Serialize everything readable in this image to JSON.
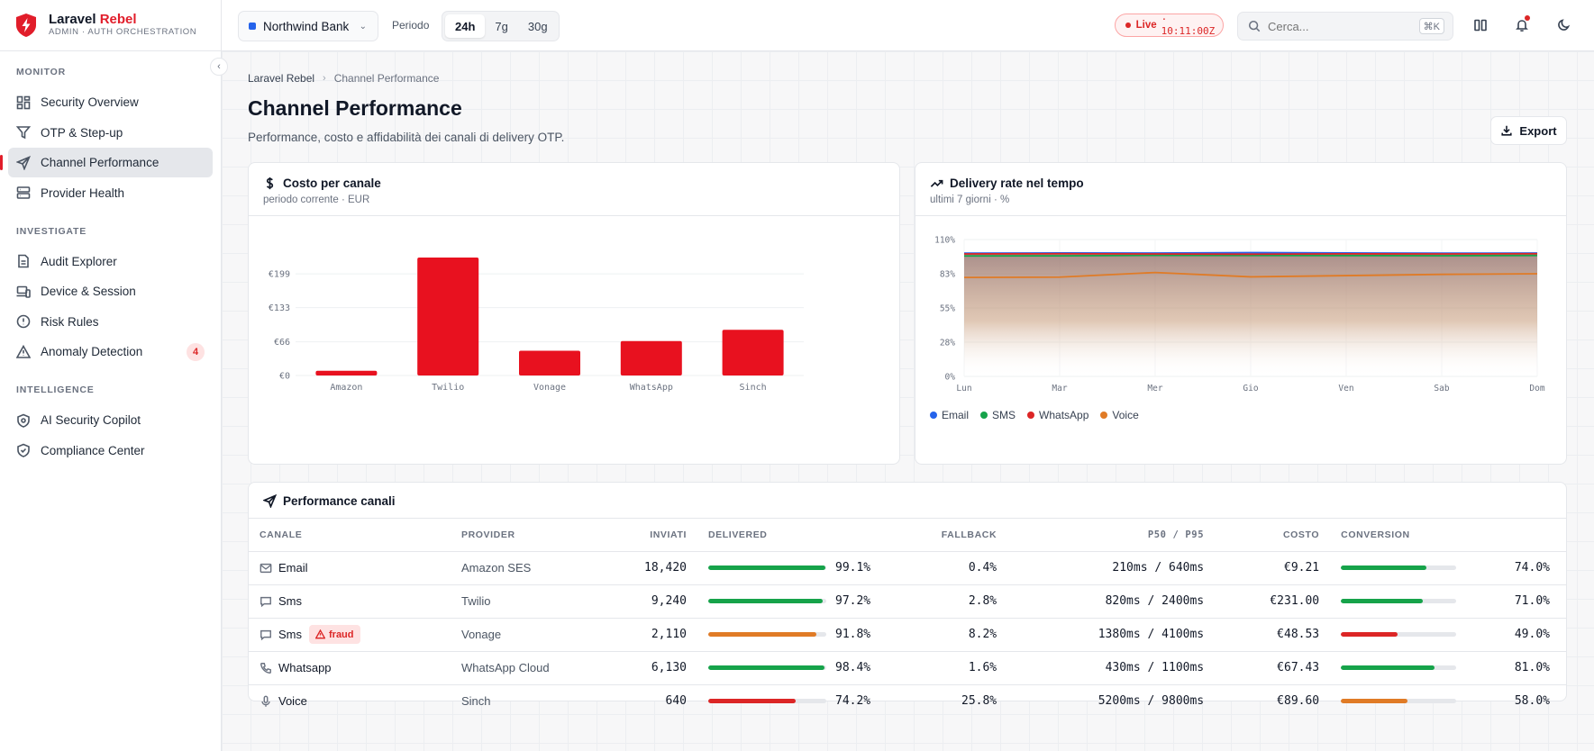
{
  "brand": {
    "name_main": "Laravel ",
    "name_accent": "Rebel",
    "subtitle": "ADMIN · AUTH ORCHESTRATION"
  },
  "sidebar": {
    "sections": [
      {
        "heading": "MONITOR",
        "items": [
          {
            "label": "Security Overview",
            "icon": "grid-icon"
          },
          {
            "label": "OTP & Step-up",
            "icon": "funnel-icon"
          },
          {
            "label": "Channel Performance",
            "icon": "send-icon",
            "active": true
          },
          {
            "label": "Provider Health",
            "icon": "server-icon"
          }
        ]
      },
      {
        "heading": "INVESTIGATE",
        "items": [
          {
            "label": "Audit Explorer",
            "icon": "file-icon"
          },
          {
            "label": "Device & Session",
            "icon": "devices-icon"
          },
          {
            "label": "Risk Rules",
            "icon": "alert-circle-icon"
          },
          {
            "label": "Anomaly Detection",
            "icon": "warning-icon",
            "badge": "4"
          }
        ]
      },
      {
        "heading": "INTELLIGENCE",
        "items": [
          {
            "label": "AI Security Copilot",
            "icon": "ai-shield-icon"
          },
          {
            "label": "Compliance Center",
            "icon": "shield-check-icon"
          }
        ]
      }
    ]
  },
  "topbar": {
    "tenant": "Northwind Bank",
    "period_label": "Periodo",
    "periods": [
      "24h",
      "7g",
      "30g"
    ],
    "active_period": "24h",
    "live_label": "Live",
    "live_time": "· 10:11:00Z",
    "search_placeholder": "Cerca...",
    "search_shortcut": "⌘K"
  },
  "page": {
    "breadcrumb": [
      "Laravel Rebel",
      "Channel Performance"
    ],
    "title": "Channel Performance",
    "subtitle": "Performance, costo e affidabilità dei canali di delivery OTP.",
    "export_label": "Export"
  },
  "cost_card": {
    "title": "Costo per canale",
    "subtitle": "periodo corrente · EUR"
  },
  "delivery_card": {
    "title": "Delivery rate nel tempo",
    "subtitle": "ultimi 7 giorni · %"
  },
  "chart_data": [
    {
      "type": "bar",
      "title": "Costo per canale",
      "categories": [
        "Amazon",
        "Twilio",
        "Vonage",
        "WhatsApp",
        "Sinch"
      ],
      "values": [
        9.21,
        231.0,
        48.53,
        67.43,
        89.6
      ],
      "ylim": [
        0,
        231
      ],
      "yticks": [
        "€0",
        "€66",
        "€133",
        "€199"
      ],
      "ytick_values": [
        0,
        66,
        133,
        199
      ],
      "color": "#e8111f",
      "grid": true
    },
    {
      "type": "line",
      "title": "Delivery rate nel tempo",
      "x": [
        "Lun",
        "Mar",
        "Mer",
        "Gio",
        "Ven",
        "Sab",
        "Dom"
      ],
      "ylim": [
        0,
        110
      ],
      "yticks": [
        "0%",
        "28%",
        "55%",
        "83%",
        "110%"
      ],
      "ytick_values": [
        0,
        27.5,
        55,
        82.5,
        110
      ],
      "series": [
        {
          "name": "Email",
          "color": "#2563eb",
          "values": [
            99.0,
            99.2,
            99.1,
            99.5,
            99.2,
            99.0,
            99.1
          ]
        },
        {
          "name": "SMS",
          "color": "#16a34a",
          "values": [
            96.8,
            96.9,
            97.3,
            97.2,
            97.1,
            97.0,
            97.2
          ]
        },
        {
          "name": "WhatsApp",
          "color": "#dc2626",
          "values": [
            98.4,
            98.6,
            98.4,
            98.2,
            98.5,
            98.4,
            98.6
          ]
        },
        {
          "name": "Voice",
          "color": "#e07b26",
          "values": [
            79.5,
            79.8,
            83.5,
            80.0,
            81.0,
            82.0,
            82.5
          ]
        }
      ],
      "legend": "bottom-left",
      "grid": true
    }
  ],
  "table": {
    "title": "Performance canali",
    "columns": [
      "CANALE",
      "PROVIDER",
      "INVIATI",
      "DELIVERED",
      "FALLBACK",
      "P50 / P95",
      "COSTO",
      "CONVERSION"
    ],
    "rows": [
      {
        "channel": "Email",
        "icon": "mail-icon",
        "provider": "Amazon SES",
        "sent": "18,420",
        "delivered": "99.1%",
        "delivered_value": 99.1,
        "delivered_color": "#16a34a",
        "fallback": "0.4%",
        "latency": "210ms / 640ms",
        "cost": "€9.21",
        "conversion": "74.0%",
        "conversion_value": 74.0,
        "conversion_color": "#16a34a"
      },
      {
        "channel": "Sms",
        "icon": "message-icon",
        "provider": "Twilio",
        "sent": "9,240",
        "delivered": "97.2%",
        "delivered_value": 97.2,
        "delivered_color": "#16a34a",
        "fallback": "2.8%",
        "latency": "820ms / 2400ms",
        "cost": "€231.00",
        "conversion": "71.0%",
        "conversion_value": 71.0,
        "conversion_color": "#16a34a"
      },
      {
        "channel": "Sms",
        "icon": "message-icon",
        "badge": "fraud",
        "provider": "Vonage",
        "sent": "2,110",
        "delivered": "91.8%",
        "delivered_value": 91.8,
        "delivered_color": "#e07b26",
        "fallback": "8.2%",
        "latency": "1380ms / 4100ms",
        "cost": "€48.53",
        "conversion": "49.0%",
        "conversion_value": 49.0,
        "conversion_color": "#dc2626"
      },
      {
        "channel": "Whatsapp",
        "icon": "phone-icon",
        "provider": "WhatsApp Cloud",
        "sent": "6,130",
        "delivered": "98.4%",
        "delivered_value": 98.4,
        "delivered_color": "#16a34a",
        "fallback": "1.6%",
        "latency": "430ms / 1100ms",
        "cost": "€67.43",
        "conversion": "81.0%",
        "conversion_value": 81.0,
        "conversion_color": "#16a34a"
      },
      {
        "channel": "Voice",
        "icon": "mic-icon",
        "provider": "Sinch",
        "sent": "640",
        "delivered": "74.2%",
        "delivered_value": 74.2,
        "delivered_color": "#dc2626",
        "fallback": "25.8%",
        "latency": "5200ms / 9800ms",
        "cost": "€89.60",
        "conversion": "58.0%",
        "conversion_value": 58.0,
        "conversion_color": "#e07b26"
      }
    ]
  }
}
